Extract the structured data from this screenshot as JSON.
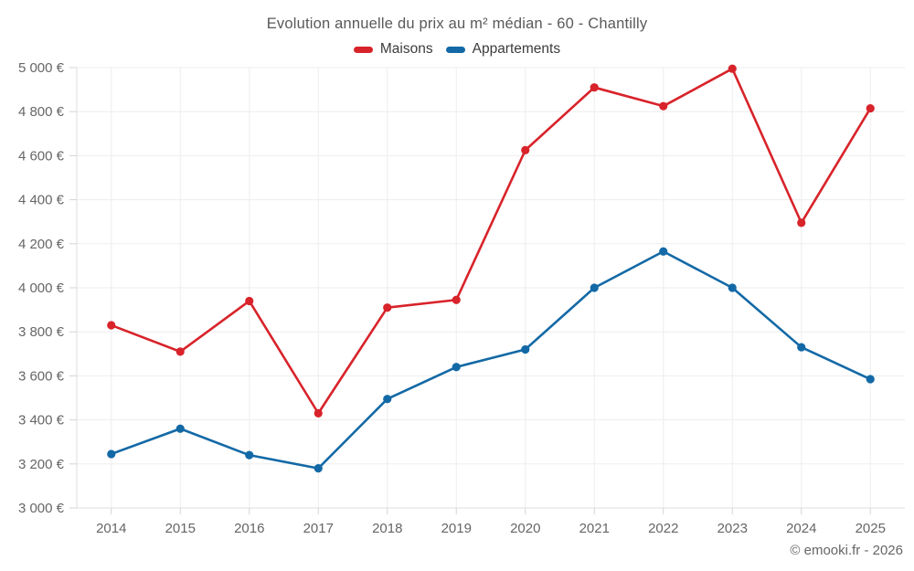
{
  "header": {
    "title": "Evolution annuelle du prix au m² médian - 60 - Chantilly"
  },
  "legend": [
    {
      "label": "Maisons",
      "color": "#d8232a"
    },
    {
      "label": "Appartements",
      "color": "#1369a6"
    }
  ],
  "footer": {
    "credit": "© emooki.fr - 2026"
  },
  "chart_data": {
    "type": "line",
    "title": "Evolution annuelle du prix au m² médian - 60 - Chantilly",
    "categories": [
      "2014",
      "2015",
      "2016",
      "2017",
      "2018",
      "2019",
      "2020",
      "2021",
      "2022",
      "2023",
      "2024",
      "2025"
    ],
    "series": [
      {
        "name": "Maisons",
        "color": "#d8232a",
        "values": [
          3830,
          3710,
          3940,
          3430,
          3910,
          3945,
          4625,
          4910,
          4825,
          4995,
          4295,
          4815
        ]
      },
      {
        "name": "Appartements",
        "color": "#1369a6",
        "values": [
          3245,
          3360,
          3240,
          3180,
          3495,
          3640,
          3720,
          4000,
          4165,
          4000,
          3730,
          3585
        ]
      }
    ],
    "xlabel": "",
    "ylabel": "",
    "ylim": [
      3000,
      5000
    ],
    "ytick_step": 200,
    "ytick_suffix": " €",
    "grid": true,
    "legend_position": "top",
    "marker": "circle",
    "grid_color": "#ededed",
    "axis_color": "#dedede",
    "tick_color": "#d4d4d4",
    "label_color": "#666666"
  }
}
